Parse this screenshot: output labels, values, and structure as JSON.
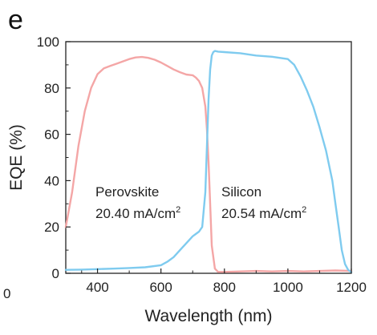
{
  "panel_label": "e",
  "stray_label": "0",
  "chart_data": {
    "type": "line",
    "xlabel": "Wavelength (nm)",
    "ylabel": "EQE (%)",
    "xlim": [
      300,
      1200
    ],
    "ylim": [
      0,
      100
    ],
    "xticks": [
      400,
      600,
      800,
      1000,
      1200
    ],
    "yticks": [
      0,
      20,
      40,
      60,
      80,
      100
    ],
    "grid": false,
    "legend": "none",
    "annotations": [
      {
        "line1": "Perovskite",
        "value": "20.40 mA/cm",
        "sup": "2"
      },
      {
        "line1": "Silicon",
        "value": "20.54 mA/cm",
        "sup": "2"
      }
    ],
    "series": [
      {
        "name": "Perovskite",
        "color": "#f4a6a6",
        "x": [
          300,
          320,
          340,
          360,
          380,
          400,
          420,
          440,
          460,
          480,
          500,
          520,
          540,
          560,
          580,
          600,
          620,
          640,
          660,
          680,
          700,
          710,
          720,
          730,
          740,
          745,
          750,
          755,
          760,
          770,
          780,
          800,
          850,
          900,
          950,
          1000,
          1050,
          1100,
          1150,
          1200
        ],
        "y": [
          20,
          35,
          55,
          70,
          80,
          86,
          88.5,
          89.5,
          90.5,
          91.5,
          92.5,
          93.2,
          93.4,
          93,
          92.2,
          91,
          89.5,
          88,
          86.8,
          85.8,
          85.5,
          84.5,
          83,
          80,
          72,
          62,
          48,
          30,
          12,
          2,
          0.6,
          0.6,
          0.8,
          1,
          0.8,
          1,
          0.8,
          1,
          1.2,
          1
        ],
        "label": "Perovskite"
      },
      {
        "name": "Silicon",
        "color": "#7fcbef",
        "x": [
          300,
          350,
          400,
          450,
          500,
          550,
          600,
          620,
          640,
          660,
          680,
          700,
          710,
          720,
          730,
          740,
          745,
          750,
          755,
          760,
          765,
          770,
          780,
          800,
          850,
          900,
          950,
          1000,
          1020,
          1040,
          1060,
          1080,
          1100,
          1120,
          1140,
          1150,
          1160,
          1170,
          1180,
          1190,
          1200
        ],
        "y": [
          1.5,
          1.6,
          1.8,
          2,
          2.3,
          2.6,
          3.5,
          5,
          7,
          10,
          13,
          16,
          17,
          18,
          20,
          35,
          55,
          75,
          88,
          94,
          95.5,
          96,
          95.7,
          95.5,
          95,
          94,
          93.5,
          92.5,
          90,
          85,
          79,
          72,
          63,
          53,
          40,
          30,
          20,
          10,
          4,
          1.5,
          0.5
        ],
        "label": "Silicon"
      }
    ]
  }
}
